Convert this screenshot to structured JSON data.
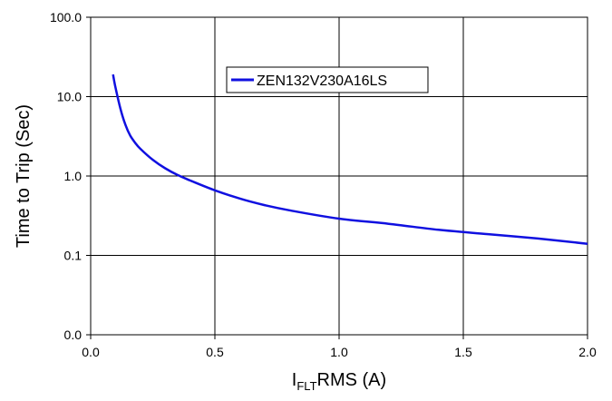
{
  "chart_data": {
    "type": "line",
    "title": "",
    "xlabel": {
      "main": "I",
      "subscript": "FLT",
      "rest": "RMS (A)"
    },
    "ylabel": "Time to Trip (Sec)",
    "xlim": [
      0.0,
      2.0
    ],
    "ylim": [
      0.01,
      100.0
    ],
    "y_scale": "log",
    "grid": true,
    "legend_position": "top-center",
    "x_ticks": [
      0.0,
      0.5,
      1.0,
      1.5,
      2.0
    ],
    "x_tick_labels": [
      "0.0",
      "0.5",
      "1.0",
      "1.5",
      "2.0"
    ],
    "y_ticks": [
      0.01,
      0.1,
      1.0,
      10.0,
      100.0
    ],
    "y_tick_labels": [
      "0.0",
      "0.1",
      "1.0",
      "10.0",
      "100.0"
    ],
    "series": [
      {
        "name": "ZEN132V230A16LS",
        "color": "#1010e0",
        "x": [
          0.09,
          0.1,
          0.12,
          0.14,
          0.16,
          0.18,
          0.2,
          0.25,
          0.3,
          0.35,
          0.4,
          0.5,
          0.6,
          0.7,
          0.8,
          1.0,
          1.2,
          1.4,
          1.6,
          1.8,
          2.0
        ],
        "y": [
          19.0,
          13.0,
          7.0,
          4.4,
          3.2,
          2.6,
          2.2,
          1.6,
          1.25,
          1.03,
          0.88,
          0.66,
          0.52,
          0.43,
          0.37,
          0.29,
          0.25,
          0.21,
          0.185,
          0.163,
          0.14
        ]
      }
    ]
  }
}
